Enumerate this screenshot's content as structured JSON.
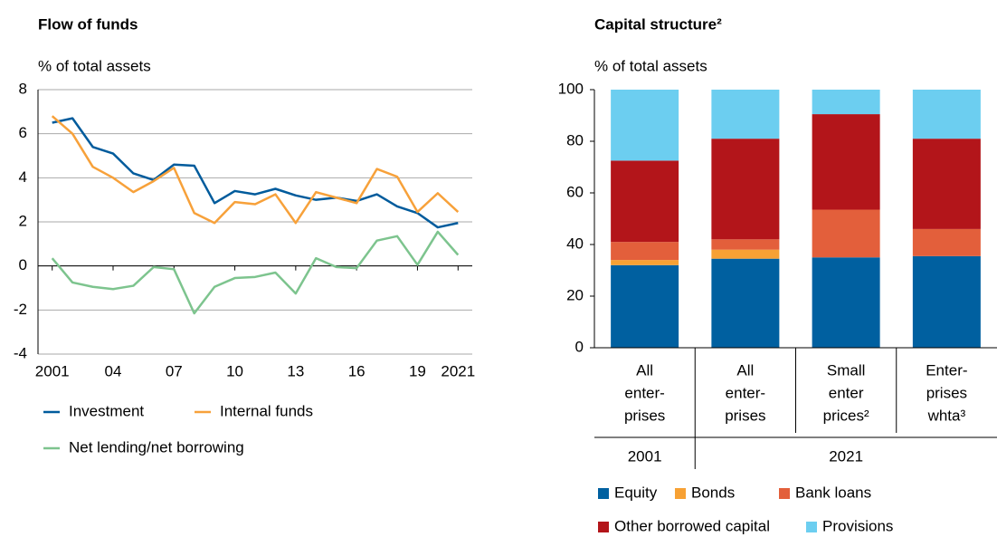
{
  "chart_data": [
    {
      "type": "line",
      "title": "Flow of funds",
      "y_label": "% of total assets",
      "x": [
        2001,
        2002,
        2003,
        2004,
        2005,
        2006,
        2007,
        2008,
        2009,
        2010,
        2011,
        2012,
        2013,
        2014,
        2015,
        2016,
        2017,
        2018,
        2019,
        2020,
        2021
      ],
      "xlim": [
        2000.3,
        2021.7
      ],
      "xticks": [
        2001,
        {
          "value": 2004,
          "label": "04"
        },
        {
          "value": 2007,
          "label": "07"
        },
        {
          "value": 2010,
          "label": "10"
        },
        {
          "value": 2013,
          "label": "13"
        },
        {
          "value": 2016,
          "label": "16"
        },
        {
          "value": 2019,
          "label": "19"
        },
        2021
      ],
      "ylim": [
        -4,
        8
      ],
      "yticks": [
        -4,
        -2,
        0,
        2,
        4,
        6,
        8
      ],
      "grid": true,
      "series": [
        {
          "name": "Investment",
          "color": "#005b9c",
          "values": [
            6.5,
            6.7,
            5.4,
            5.1,
            4.2,
            3.9,
            4.6,
            4.55,
            2.85,
            3.4,
            3.25,
            3.5,
            3.2,
            3.0,
            3.1,
            2.95,
            3.25,
            2.7,
            2.4,
            1.75,
            1.95
          ]
        },
        {
          "name": "Internal funds",
          "color": "#f7a13a",
          "values": [
            6.8,
            6.0,
            4.5,
            4.0,
            3.35,
            3.85,
            4.45,
            2.4,
            1.95,
            2.9,
            2.8,
            3.25,
            1.95,
            3.35,
            3.1,
            2.85,
            4.4,
            4.05,
            2.45,
            3.3,
            2.45
          ]
        },
        {
          "name": "Net lending/net borrowing",
          "color": "#7dc48e",
          "values": [
            0.35,
            -0.75,
            -0.95,
            -1.05,
            -0.9,
            -0.05,
            -0.15,
            -2.15,
            -0.95,
            -0.55,
            -0.5,
            -0.3,
            -1.25,
            0.35,
            -0.05,
            -0.1,
            1.15,
            1.35,
            0.05,
            1.55,
            0.5
          ]
        }
      ]
    },
    {
      "type": "stacked_bar",
      "title": "Capital structure²",
      "y_label": "% of total assets",
      "categories": [
        {
          "lines": [
            "All",
            "enter-",
            "prises"
          ],
          "group": "2001"
        },
        {
          "lines": [
            "All",
            "enter-",
            "prises"
          ],
          "group": "2021"
        },
        {
          "lines": [
            "Small",
            "enter",
            "prices²"
          ],
          "group": "2021"
        },
        {
          "lines": [
            "Enter-",
            "prises",
            "whta³"
          ],
          "group": "2021"
        }
      ],
      "ylim": [
        0,
        100
      ],
      "yticks": [
        0,
        20,
        40,
        60,
        80,
        100
      ],
      "series": [
        {
          "name": "Equity",
          "color": "#0060a0",
          "values": [
            32,
            34.5,
            35,
            35.5
          ]
        },
        {
          "name": "Bonds",
          "color": "#f7a134",
          "values": [
            2,
            3.5,
            0,
            0
          ]
        },
        {
          "name": "Bank loans",
          "color": "#e35f3b",
          "values": [
            7,
            4,
            18.5,
            10.5
          ]
        },
        {
          "name": "Other borrowed capital",
          "color": "#b3151a",
          "values": [
            31.5,
            39,
            37,
            35
          ]
        },
        {
          "name": "Provisions",
          "color": "#6ccef0",
          "values": [
            27.5,
            19,
            9.5,
            19
          ]
        }
      ]
    }
  ]
}
